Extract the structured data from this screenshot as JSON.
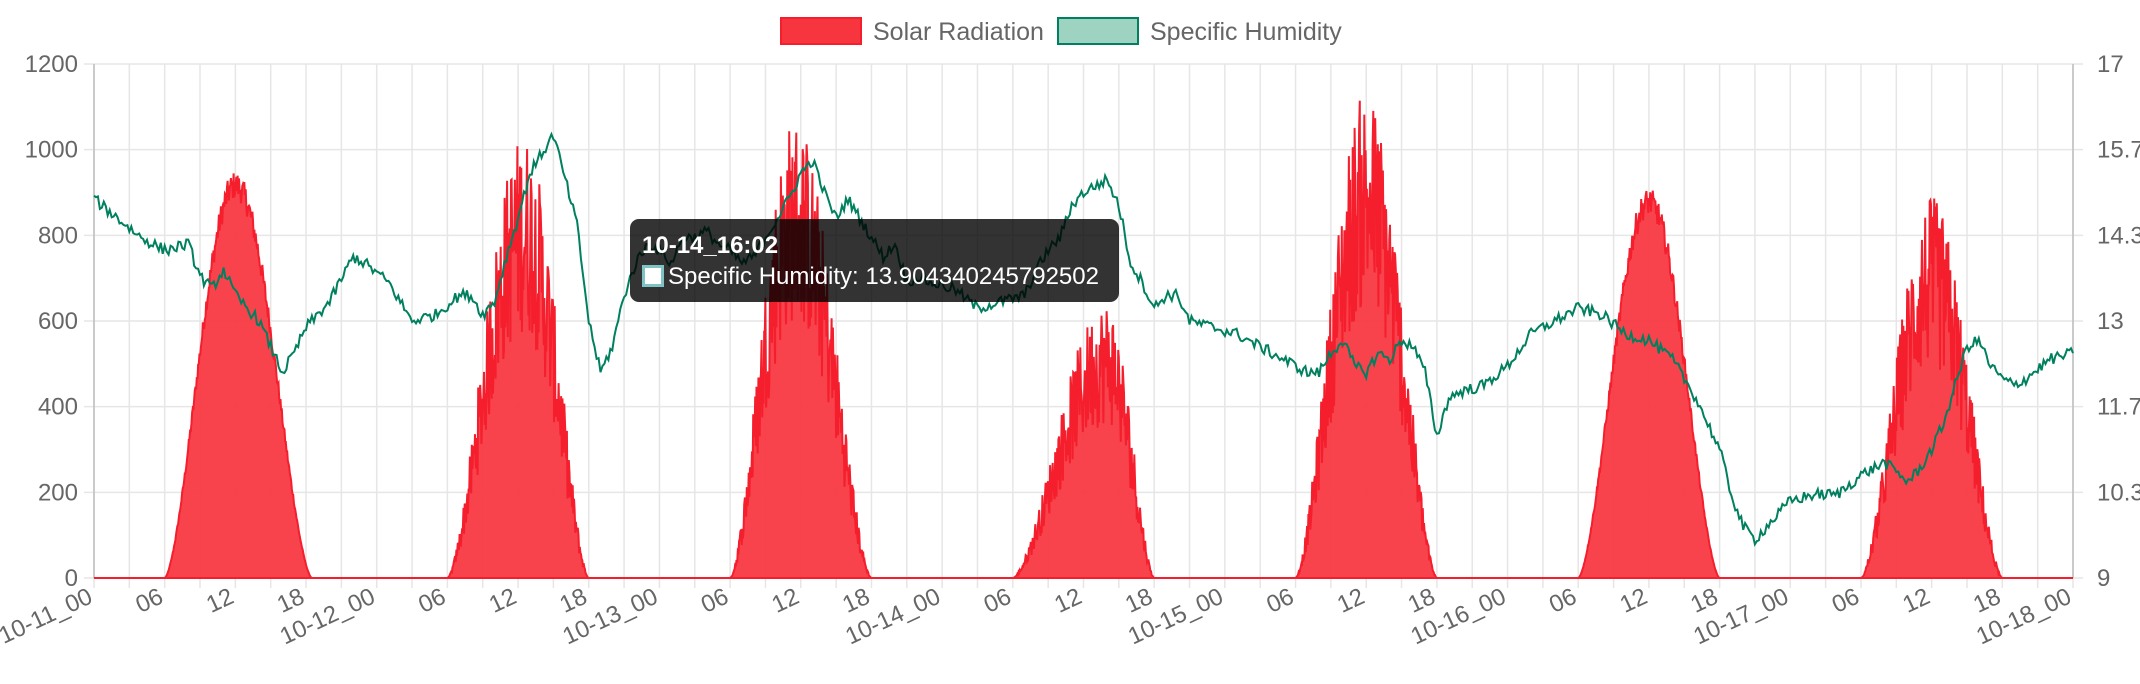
{
  "chart_data": {
    "type": "area",
    "x_axis": {
      "min": "10-11_00",
      "max": "10-18_00",
      "tick_labels": [
        "10-11_00",
        "06",
        "12",
        "18",
        "10-12_00",
        "06",
        "12",
        "18",
        "10-13_00",
        "06",
        "12",
        "18",
        "10-14_00",
        "06",
        "12",
        "18",
        "10-15_00",
        "06",
        "12",
        "18",
        "10-16_00",
        "06",
        "12",
        "18",
        "10-17_00",
        "06",
        "12",
        "18",
        "10-18_00"
      ]
    },
    "y_left": {
      "min": 0,
      "max": 1200,
      "step": 200,
      "tick_labels": [
        "0",
        "200",
        "400",
        "600",
        "800",
        "1000",
        "1200"
      ]
    },
    "y_right": {
      "min": 9,
      "max": 17,
      "tick_labels": [
        "9",
        "10.3",
        "11.7",
        "13",
        "14.3",
        "15.7",
        "17"
      ]
    },
    "legend_position": "top-center",
    "grid": true,
    "series": [
      {
        "name": "Solar Radiation",
        "axis": "left",
        "style": "filled-area",
        "color": "#f51e2d",
        "fill": "#f7353f",
        "daily_profiles": [
          {
            "day": "10-11",
            "rise_hour": 6.0,
            "set_hour": 18.5,
            "peak_hour": 12.0,
            "peak": 950,
            "spiky": false
          },
          {
            "day": "10-12",
            "rise_hour": 6.0,
            "set_hour": 18.0,
            "peak_hour": 12.5,
            "peak": 1040,
            "spiky": true
          },
          {
            "day": "10-13",
            "rise_hour": 6.0,
            "set_hour": 18.0,
            "peak_hour": 11.5,
            "peak": 1080,
            "spiky": true
          },
          {
            "day": "10-14",
            "rise_hour": 6.0,
            "set_hour": 18.0,
            "peak_hour": 14.0,
            "peak": 650,
            "spiky": true
          },
          {
            "day": "10-15",
            "rise_hour": 6.0,
            "set_hour": 18.0,
            "peak_hour": 12.0,
            "peak": 1140,
            "spiky": true
          },
          {
            "day": "10-16",
            "rise_hour": 6.0,
            "set_hour": 18.0,
            "peak_hour": 12.0,
            "peak": 910,
            "spiky": false
          },
          {
            "day": "10-17",
            "rise_hour": 6.0,
            "set_hour": 18.0,
            "peak_hour": 12.0,
            "peak": 890,
            "spiky": true
          }
        ]
      },
      {
        "name": "Specific Humidity",
        "axis": "right",
        "style": "line",
        "color": "#00805f",
        "legend_fill": "#9fd3c1",
        "points": [
          [
            "10-11_00",
            14.9
          ],
          [
            "10-11_02",
            14.6
          ],
          [
            "10-11_04",
            14.3
          ],
          [
            "10-11_06",
            14.1
          ],
          [
            "10-11_08",
            14.2
          ],
          [
            "10-11_09",
            13.7
          ],
          [
            "10-11_10",
            13.5
          ],
          [
            "10-11_11",
            13.8
          ],
          [
            "10-11_12",
            13.4
          ],
          [
            "10-11_13",
            13.2
          ],
          [
            "10-11_14",
            13.0
          ],
          [
            "10-11_15",
            12.6
          ],
          [
            "10-11_16",
            12.2
          ],
          [
            "10-11_17",
            12.5
          ],
          [
            "10-11_18",
            12.9
          ],
          [
            "10-11_20",
            13.3
          ],
          [
            "10-11_22",
            14.0
          ],
          [
            "10-11_23",
            13.9
          ],
          [
            "10-12_01",
            13.6
          ],
          [
            "10-12_03",
            13.0
          ],
          [
            "10-12_05",
            13.1
          ],
          [
            "10-12_07",
            13.4
          ],
          [
            "10-12_08",
            13.4
          ],
          [
            "10-12_09",
            13.1
          ],
          [
            "10-12_10",
            13.3
          ],
          [
            "10-12_11",
            14.0
          ],
          [
            "10-12_12",
            14.6
          ],
          [
            "10-12_13",
            15.3
          ],
          [
            "10-12_14",
            15.6
          ],
          [
            "10-12_15",
            15.9
          ],
          [
            "10-12_16",
            15.2
          ],
          [
            "10-12_17",
            14.5
          ],
          [
            "10-12_18",
            13.0
          ],
          [
            "10-12_19",
            12.2
          ],
          [
            "10-12_20",
            12.6
          ],
          [
            "10-12_21",
            13.4
          ],
          [
            "10-12_22",
            13.9
          ],
          [
            "10-12_23",
            14.2
          ],
          [
            "10-13_00",
            14.1
          ],
          [
            "10-13_01",
            13.9
          ],
          [
            "10-13_02",
            14.3
          ],
          [
            "10-13_03",
            14.3
          ],
          [
            "10-13_04",
            14.4
          ],
          [
            "10-13_05",
            14.2
          ],
          [
            "10-13_06",
            14.1
          ],
          [
            "10-13_07",
            13.9
          ],
          [
            "10-13_08",
            14.0
          ],
          [
            "10-13_09",
            14.3
          ],
          [
            "10-13_10",
            14.6
          ],
          [
            "10-13_11",
            14.9
          ],
          [
            "10-13_12",
            15.3
          ],
          [
            "10-13_13",
            15.5
          ],
          [
            "10-13_14",
            15.0
          ],
          [
            "10-13_15",
            14.6
          ],
          [
            "10-13_16",
            14.9
          ],
          [
            "10-13_17",
            14.6
          ],
          [
            "10-13_18",
            14.3
          ],
          [
            "10-13_19",
            14.0
          ],
          [
            "10-13_20",
            14.2
          ],
          [
            "10-13_21",
            13.6
          ],
          [
            "10-13_22",
            13.7
          ],
          [
            "10-13_23",
            13.6
          ],
          [
            "10-14_01",
            13.5
          ],
          [
            "10-14_03",
            13.2
          ],
          [
            "10-14_05",
            13.3
          ],
          [
            "10-14_07",
            13.4
          ],
          [
            "10-14_08",
            13.8
          ],
          [
            "10-14_09",
            14.1
          ],
          [
            "10-14_10",
            14.3
          ],
          [
            "10-14_11",
            14.8
          ],
          [
            "10-14_12",
            15.0
          ],
          [
            "10-14_13",
            15.1
          ],
          [
            "10-14_14",
            15.2
          ],
          [
            "10-14_15",
            14.8
          ],
          [
            "10-14_16",
            13.9
          ],
          [
            "10-14_17",
            13.6
          ],
          [
            "10-14_18",
            13.2
          ],
          [
            "10-14_19",
            13.4
          ],
          [
            "10-14_20",
            13.4
          ],
          [
            "10-14_21",
            13.0
          ],
          [
            "10-14_23",
            12.9
          ],
          [
            "10-15_01",
            12.8
          ],
          [
            "10-15_03",
            12.6
          ],
          [
            "10-15_05",
            12.4
          ],
          [
            "10-15_07",
            12.2
          ],
          [
            "10-15_08",
            12.2
          ],
          [
            "10-15_09",
            12.5
          ],
          [
            "10-15_10",
            12.7
          ],
          [
            "10-15_11",
            12.3
          ],
          [
            "10-15_12",
            12.2
          ],
          [
            "10-15_13",
            12.5
          ],
          [
            "10-15_14",
            12.4
          ],
          [
            "10-15_15",
            12.7
          ],
          [
            "10-15_16",
            12.6
          ],
          [
            "10-15_17",
            12.2
          ],
          [
            "10-15_18",
            11.2
          ],
          [
            "10-15_19",
            11.8
          ],
          [
            "10-15_20",
            11.9
          ],
          [
            "10-15_22",
            12.0
          ],
          [
            "10-16_00",
            12.3
          ],
          [
            "10-16_02",
            12.8
          ],
          [
            "10-16_04",
            13.0
          ],
          [
            "10-16_06",
            13.2
          ],
          [
            "10-16_08",
            13.1
          ],
          [
            "10-16_10",
            12.8
          ],
          [
            "10-16_12",
            12.7
          ],
          [
            "10-16_14",
            12.4
          ],
          [
            "10-16_16",
            11.8
          ],
          [
            "10-16_18",
            11.0
          ],
          [
            "10-16_19",
            10.3
          ],
          [
            "10-16_20",
            9.8
          ],
          [
            "10-16_21",
            9.6
          ],
          [
            "10-16_22",
            9.8
          ],
          [
            "10-16_23",
            10.0
          ],
          [
            "10-17_00",
            10.2
          ],
          [
            "10-17_02",
            10.3
          ],
          [
            "10-17_04",
            10.3
          ],
          [
            "10-17_06",
            10.6
          ],
          [
            "10-17_08",
            10.8
          ],
          [
            "10-17_10",
            10.5
          ],
          [
            "10-17_11",
            10.7
          ],
          [
            "10-17_12",
            11.0
          ],
          [
            "10-17_13",
            11.4
          ],
          [
            "10-17_14",
            12.0
          ],
          [
            "10-17_15",
            12.6
          ],
          [
            "10-17_16",
            12.7
          ],
          [
            "10-17_17",
            12.3
          ],
          [
            "10-17_18",
            12.1
          ],
          [
            "10-17_19",
            12.0
          ],
          [
            "10-17_20",
            12.1
          ],
          [
            "10-17_22",
            12.4
          ],
          [
            "10-18_00",
            12.5
          ]
        ]
      }
    ]
  },
  "tooltip": {
    "title": "10-14_16:02",
    "label": "Specific Humidity: 13.904340245792502"
  },
  "colors": {
    "grid": "#e6e6e6",
    "axis_text": "#666666",
    "solar_line": "#f51e2d",
    "solar_fill": "#f7353f",
    "humidity_line": "#00805f",
    "humidity_legend_fill": "#9fd3c1"
  }
}
